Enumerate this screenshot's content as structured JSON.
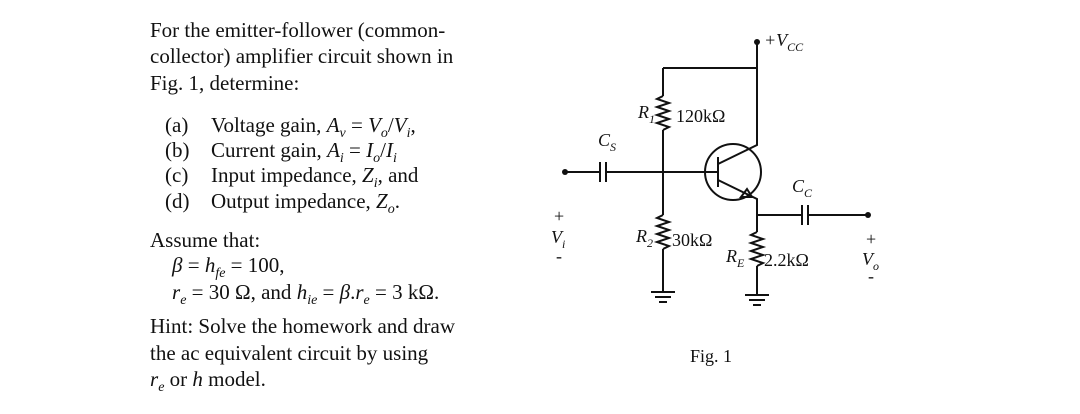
{
  "problem": {
    "intro": [
      "For the emitter-follower (common-",
      "collector) amplifier circuit shown in",
      "Fig. 1, determine:"
    ],
    "parts": [
      {
        "label": "(a)",
        "runs": [
          "Voltage gain, ",
          "A",
          "v",
          " = ",
          "V",
          "o",
          "/",
          "V",
          "i",
          ","
        ]
      },
      {
        "label": "(b)",
        "runs": [
          "Current gain, ",
          "A",
          "i",
          " = ",
          "I",
          "o",
          "/",
          "I",
          "i"
        ]
      },
      {
        "label": "(c)",
        "runs": [
          "Input impedance, ",
          "Z",
          "i",
          ", and"
        ]
      },
      {
        "label": "(d)",
        "runs": [
          "Output impedance, ",
          "Z",
          "o",
          "."
        ]
      }
    ],
    "assume": {
      "heading": "Assume that:",
      "lines": [
        [
          "β",
          " = ",
          "h",
          "fe",
          " = 100,"
        ],
        [
          "r",
          "e",
          " = 30 Ω, and ",
          "h",
          "ie",
          " = ",
          "β",
          ".",
          "r",
          "e",
          " = 3 kΩ."
        ]
      ]
    },
    "hint": {
      "lines": [
        "Hint: Solve the homework and draw",
        "the ac equivalent circuit by using"
      ],
      "last": [
        "r",
        "e",
        " or ",
        "h",
        " model."
      ]
    }
  },
  "figure": {
    "vcc": [
      "+V",
      "CC"
    ],
    "r1": [
      "R",
      "1"
    ],
    "r1_value": "120kΩ",
    "cs": [
      "C",
      "S"
    ],
    "cc": [
      "C",
      "C"
    ],
    "vi": [
      "V",
      "i"
    ],
    "vi_plus": "+",
    "vi_minus": "-",
    "r2": [
      "R",
      "2"
    ],
    "r2_value": "30kΩ",
    "re": [
      "R",
      "E"
    ],
    "re_value": "2.2kΩ",
    "vo": [
      "V",
      "o"
    ],
    "vo_plus": "+",
    "vo_minus": "-",
    "caption": "Fig. 1"
  }
}
